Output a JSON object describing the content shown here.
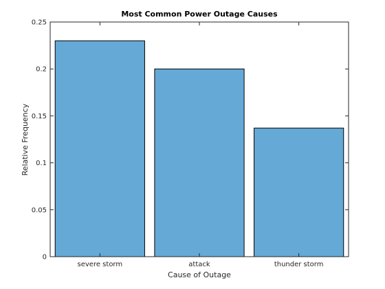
{
  "chart_data": {
    "type": "bar",
    "title": "Most Common Power Outage Causes",
    "xlabel": "Cause of Outage",
    "ylabel": "Relative Frequency",
    "categories": [
      "severe storm",
      "attack",
      "thunder storm"
    ],
    "values": [
      0.23,
      0.2,
      0.137
    ],
    "ylim": [
      0,
      0.25
    ],
    "yticks": [
      0,
      0.05,
      0.1,
      0.15,
      0.2,
      0.25
    ],
    "ytick_labels": [
      "0",
      "0.05",
      "0.1",
      "0.15",
      "0.2",
      "0.25"
    ],
    "bar_color": "#65a9d7",
    "edge_color": "#000000",
    "grid": false,
    "legend": "none"
  }
}
